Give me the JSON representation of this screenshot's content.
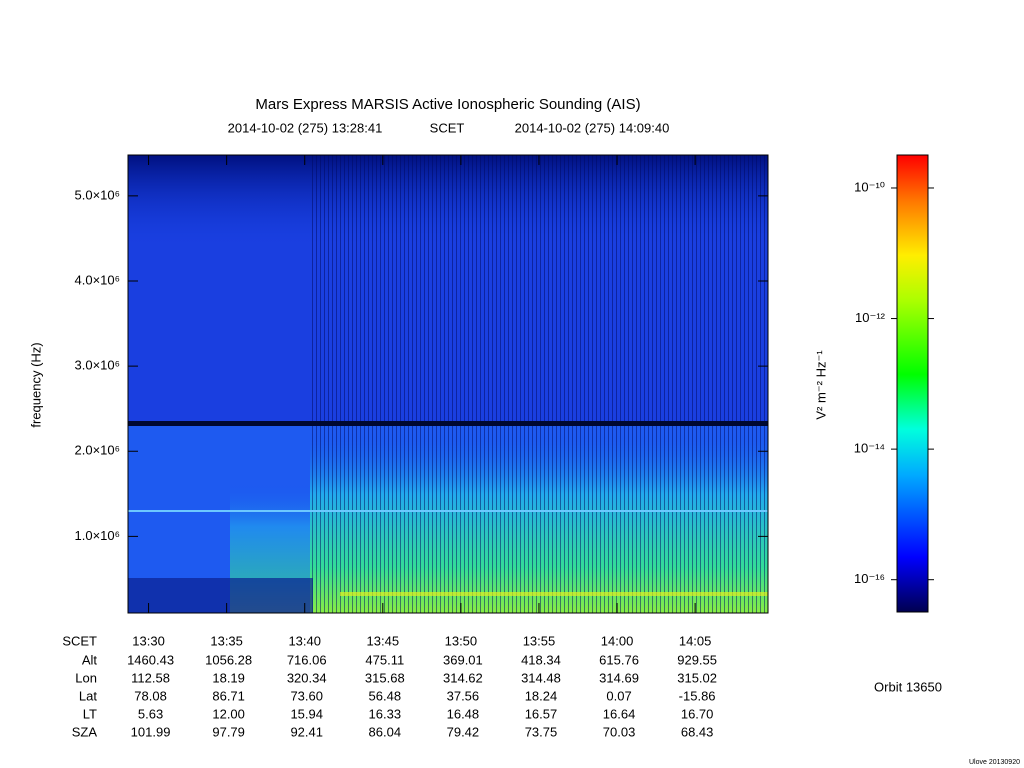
{
  "chart_data": {
    "type": "spectrogram",
    "title": "Mars Express MARSIS Active Ionospheric Sounding (AIS)",
    "start_time": "2014-10-02 (275) 13:28:41",
    "time_label": "SCET",
    "end_time": "2014-10-02 (275) 14:09:40",
    "y_label": "frequency (Hz)",
    "xlim": [
      808.683,
      849.667
    ],
    "xticks": [
      {
        "value": 810,
        "label": "13:30"
      },
      {
        "value": 815,
        "label": "13:35"
      },
      {
        "value": 820,
        "label": "13:40"
      },
      {
        "value": 825,
        "label": "13:45"
      },
      {
        "value": 830,
        "label": "13:50"
      },
      {
        "value": 835,
        "label": "13:55"
      },
      {
        "value": 840,
        "label": "14:00"
      },
      {
        "value": 845,
        "label": "14:05"
      }
    ],
    "ylim": [
      100000,
      5480000
    ],
    "yticks": [
      {
        "value": 1000000,
        "label": "1.0×10⁶"
      },
      {
        "value": 2000000,
        "label": "2.0×10⁶"
      },
      {
        "value": 3000000,
        "label": "3.0×10⁶"
      },
      {
        "value": 4000000,
        "label": "4.0×10⁶"
      },
      {
        "value": 5000000,
        "label": "5.0×10⁶"
      }
    ],
    "colorbar": {
      "label": "V² m⁻² Hz⁻¹",
      "log": true,
      "lim": [
        3.2e-17,
        3.2e-10
      ],
      "ticks": [
        {
          "value": 1e-10,
          "label": "10⁻¹⁰"
        },
        {
          "value": 1e-12,
          "label": "10⁻¹²"
        },
        {
          "value": 1e-14,
          "label": "10⁻¹⁴"
        },
        {
          "value": 1e-16,
          "label": "10⁻¹⁶"
        }
      ]
    },
    "ephemeris": [
      {
        "name": "Alt",
        "values": [
          "1460.43",
          "1056.28",
          "716.06",
          "475.11",
          "369.01",
          "418.34",
          "615.76",
          "929.55"
        ]
      },
      {
        "name": "Lon",
        "values": [
          "112.58",
          "18.19",
          "320.34",
          "315.68",
          "314.62",
          "314.48",
          "314.69",
          "315.02"
        ]
      },
      {
        "name": "Lat",
        "values": [
          "78.08",
          "86.71",
          "73.60",
          "56.48",
          "37.56",
          "18.24",
          "0.07",
          "-15.86"
        ]
      },
      {
        "name": "LT",
        "values": [
          "5.63",
          "12.00",
          "15.94",
          "16.33",
          "16.48",
          "16.57",
          "16.64",
          "16.70"
        ]
      },
      {
        "name": "SZA",
        "values": [
          "101.99",
          "97.79",
          "92.41",
          "86.04",
          "79.42",
          "73.75",
          "70.03",
          "68.43"
        ]
      }
    ],
    "orbit": "Orbit 13650",
    "version": "Ulove 20130920"
  }
}
